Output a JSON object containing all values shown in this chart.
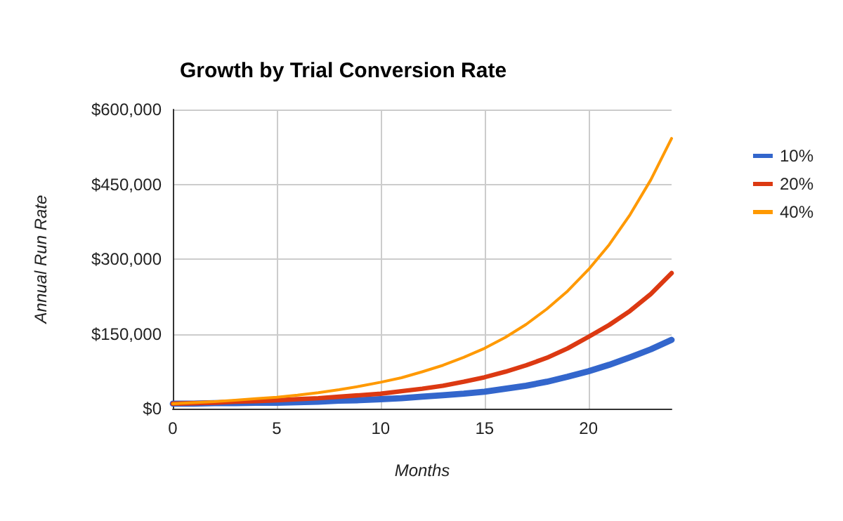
{
  "chart_data": {
    "type": "line",
    "title": "Growth by Trial Conversion Rate",
    "xlabel": "Months",
    "ylabel": "Annual Run Rate",
    "x": [
      0,
      1,
      2,
      3,
      4,
      5,
      6,
      7,
      8,
      9,
      10,
      11,
      12,
      13,
      14,
      15,
      16,
      17,
      18,
      19,
      20,
      21,
      22,
      23,
      24
    ],
    "xlim": [
      0,
      24
    ],
    "xticks": [
      0,
      5,
      10,
      15,
      20
    ],
    "ylim": [
      0,
      600000
    ],
    "yticks": [
      {
        "value": 0,
        "label": "$0"
      },
      {
        "value": 150000,
        "label": "$150,000"
      },
      {
        "value": 300000,
        "label": "$300,000"
      },
      {
        "value": 450000,
        "label": "$450,000"
      },
      {
        "value": 600000,
        "label": "$600,000"
      }
    ],
    "grid": true,
    "legend": "top right",
    "marker": "none",
    "line_style": "solid",
    "series": [
      {
        "name": "10%",
        "color": "#3366cc",
        "values": [
          10000,
          10000,
          11000,
          11000,
          12000,
          12000,
          13000,
          14000,
          16000,
          17000,
          19000,
          21000,
          24000,
          27000,
          30000,
          34000,
          40000,
          46000,
          54000,
          64000,
          75000,
          88000,
          103000,
          119000,
          138000
        ]
      },
      {
        "name": "20%",
        "color": "#dc3912",
        "values": [
          10000,
          11000,
          12000,
          14000,
          15000,
          17000,
          19000,
          21000,
          24000,
          27000,
          30000,
          35000,
          40000,
          46000,
          54000,
          63000,
          74000,
          87000,
          102000,
          121000,
          144000,
          168000,
          196000,
          230000,
          272000
        ]
      },
      {
        "name": "40%",
        "color": "#ff9900",
        "values": [
          10000,
          12000,
          14000,
          17000,
          20000,
          23000,
          27000,
          32000,
          38000,
          45000,
          53000,
          62000,
          74000,
          87000,
          103000,
          121000,
          143000,
          169000,
          200000,
          236000,
          279000,
          329000,
          389000,
          459000,
          542000
        ]
      }
    ]
  }
}
